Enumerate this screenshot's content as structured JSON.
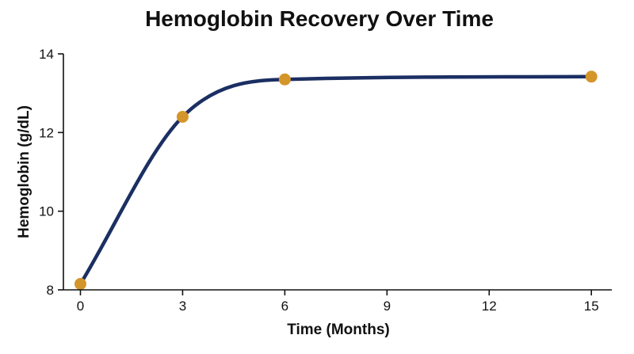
{
  "chart_data": {
    "type": "line",
    "title": "Hemoglobin Recovery Over Time",
    "xlabel": "Time (Months)",
    "ylabel": "Hemoglobin (g/dL)",
    "xlim": [
      -0.5,
      15.6
    ],
    "ylim": [
      8,
      14
    ],
    "xticks": [
      0,
      3,
      6,
      9,
      12,
      15
    ],
    "yticks": [
      8,
      10,
      12,
      14
    ],
    "grid": false,
    "smooth": true,
    "series": [
      {
        "x": [
          0,
          3,
          6,
          15
        ],
        "y": [
          8.15,
          12.4,
          13.35,
          13.42
        ],
        "line_color": "#1b2f63",
        "marker_color": "#d4952a"
      }
    ]
  }
}
